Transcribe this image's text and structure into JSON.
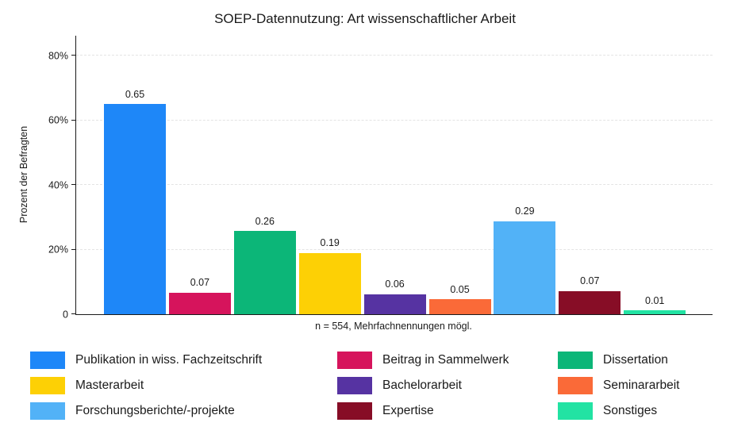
{
  "chart_data": {
    "type": "bar",
    "title": "SOEP-Datennutzung: Art wissenschaftlicher Arbeit",
    "ylabel": "Prozent der Befragten",
    "note": "n = 554, Mehrfachnennungen mögl.",
    "ylim": [
      0,
      86
    ],
    "grid": true,
    "grid_style": "dashed-horizontal",
    "legend_position": "bottom-3-columns",
    "y_ticks": [
      {
        "value": 0,
        "label": "0"
      },
      {
        "value": 20,
        "label": "20%"
      },
      {
        "value": 40,
        "label": "40%"
      },
      {
        "value": 60,
        "label": "60%"
      },
      {
        "value": 80,
        "label": "80%"
      }
    ],
    "bars": [
      {
        "name": "Publikation in wiss. Fachzeitschrift",
        "value": 0.65,
        "label": "0.65",
        "pct": 65.0,
        "color": "#1e87f8"
      },
      {
        "name": "Beitrag in Sammelwerk",
        "value": 0.07,
        "label": "0.07",
        "pct": 6.7,
        "color": "#d6145c"
      },
      {
        "name": "Dissertation",
        "value": 0.26,
        "label": "0.26",
        "pct": 25.7,
        "color": "#0cb678"
      },
      {
        "name": "Masterarbeit",
        "value": 0.19,
        "label": "0.19",
        "pct": 19.0,
        "color": "#fdd005"
      },
      {
        "name": "Bachelorarbeit",
        "value": 0.06,
        "label": "0.06",
        "pct": 6.2,
        "color": "#5633a2"
      },
      {
        "name": "Seminararbeit",
        "value": 0.05,
        "label": "0.05",
        "pct": 4.6,
        "color": "#fa6a38"
      },
      {
        "name": "Forschungsberichte/-projekte",
        "value": 0.29,
        "label": "0.29",
        "pct": 28.8,
        "color": "#52b2f7"
      },
      {
        "name": "Expertise",
        "value": 0.07,
        "label": "0.07",
        "pct": 7.2,
        "color": "#870d26"
      },
      {
        "name": "Sonstiges",
        "value": 0.01,
        "label": "0.01",
        "pct": 1.2,
        "color": "#22e3a3"
      }
    ],
    "legend": [
      {
        "label": "Publikation in wiss. Fachzeitschrift",
        "color": "#1e87f8"
      },
      {
        "label": "Beitrag in Sammelwerk",
        "color": "#d6145c"
      },
      {
        "label": "Dissertation",
        "color": "#0cb678"
      },
      {
        "label": "Masterarbeit",
        "color": "#fdd005"
      },
      {
        "label": "Bachelorarbeit",
        "color": "#5633a2"
      },
      {
        "label": "Seminararbeit",
        "color": "#fa6a38"
      },
      {
        "label": "Forschungsberichte/-projekte",
        "color": "#52b2f7"
      },
      {
        "label": "Expertise",
        "color": "#870d26"
      },
      {
        "label": "Sonstiges",
        "color": "#22e3a3"
      }
    ]
  }
}
